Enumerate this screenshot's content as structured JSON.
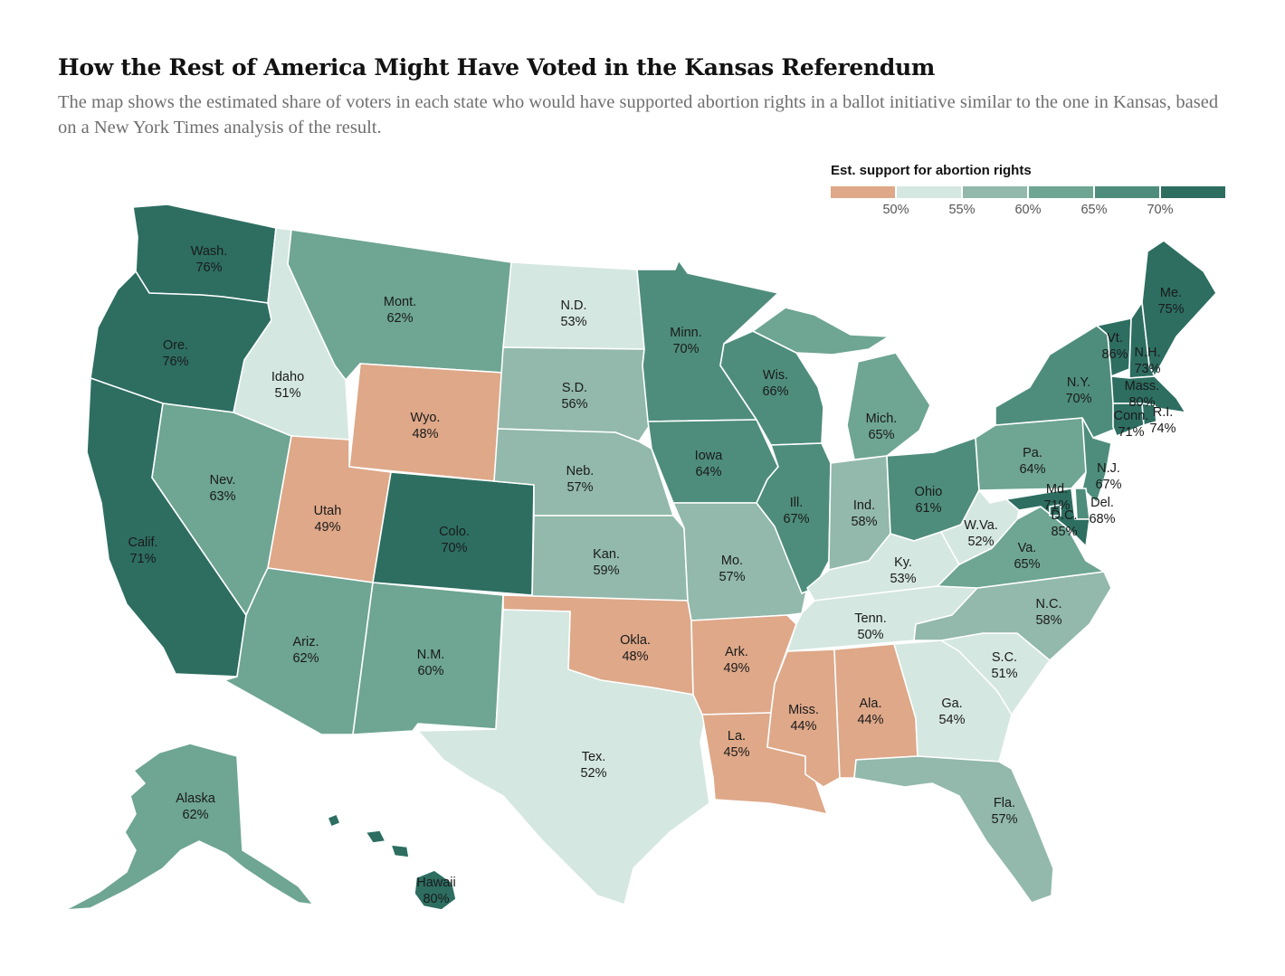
{
  "header": {
    "title": "How the Rest of America Might Have Voted in the Kansas Referendum",
    "subtitle": "The map shows the estimated share of voters in each state who would have supported abortion rights in a ballot initiative similar to the one in Kansas, based on a New York Times analysis of the result."
  },
  "legend": {
    "title": "Est. support for abortion rights",
    "ticks": [
      "50%",
      "55%",
      "60%",
      "65%",
      "70%"
    ],
    "bins": [
      {
        "range": "below 50%",
        "color": "#dea889"
      },
      {
        "range": "50–55%",
        "color": "#d4e7e0"
      },
      {
        "range": "55–60%",
        "color": "#92b9ab"
      },
      {
        "range": "60–65%",
        "color": "#6ea593"
      },
      {
        "range": "65–70%",
        "color": "#4e8d7b"
      },
      {
        "range": "70% and above",
        "color": "#2d6e61"
      }
    ]
  },
  "states": {
    "WA": {
      "name": "Wash.",
      "value": "76%"
    },
    "OR": {
      "name": "Ore.",
      "value": "76%"
    },
    "CA": {
      "name": "Calif.",
      "value": "71%"
    },
    "ID": {
      "name": "Idaho",
      "value": "51%"
    },
    "NV": {
      "name": "Nev.",
      "value": "63%"
    },
    "MT": {
      "name": "Mont.",
      "value": "62%"
    },
    "WY": {
      "name": "Wyo.",
      "value": "48%"
    },
    "UT": {
      "name": "Utah",
      "value": "49%"
    },
    "CO": {
      "name": "Colo.",
      "value": "70%"
    },
    "AZ": {
      "name": "Ariz.",
      "value": "62%"
    },
    "NM": {
      "name": "N.M.",
      "value": "60%"
    },
    "ND": {
      "name": "N.D.",
      "value": "53%"
    },
    "SD": {
      "name": "S.D.",
      "value": "56%"
    },
    "NE": {
      "name": "Neb.",
      "value": "57%"
    },
    "KS": {
      "name": "Kan.",
      "value": "59%"
    },
    "OK": {
      "name": "Okla.",
      "value": "48%"
    },
    "TX": {
      "name": "Tex.",
      "value": "52%"
    },
    "MN": {
      "name": "Minn.",
      "value": "70%"
    },
    "IA": {
      "name": "Iowa",
      "value": "64%"
    },
    "MO": {
      "name": "Mo.",
      "value": "57%"
    },
    "AR": {
      "name": "Ark.",
      "value": "49%"
    },
    "LA": {
      "name": "La.",
      "value": "45%"
    },
    "WI": {
      "name": "Wis.",
      "value": "66%"
    },
    "IL": {
      "name": "Ill.",
      "value": "67%"
    },
    "MI": {
      "name": "Mich.",
      "value": "65%"
    },
    "IN": {
      "name": "Ind.",
      "value": "58%"
    },
    "OH": {
      "name": "Ohio",
      "value": "61%"
    },
    "KY": {
      "name": "Ky.",
      "value": "53%"
    },
    "TN": {
      "name": "Tenn.",
      "value": "50%"
    },
    "MS": {
      "name": "Miss.",
      "value": "44%"
    },
    "AL": {
      "name": "Ala.",
      "value": "44%"
    },
    "GA": {
      "name": "Ga.",
      "value": "54%"
    },
    "FL": {
      "name": "Fla.",
      "value": "57%"
    },
    "SC": {
      "name": "S.C.",
      "value": "51%"
    },
    "NC": {
      "name": "N.C.",
      "value": "58%"
    },
    "VA": {
      "name": "Va.",
      "value": "65%"
    },
    "WV": {
      "name": "W.Va.",
      "value": "52%"
    },
    "PA": {
      "name": "Pa.",
      "value": "64%"
    },
    "NY": {
      "name": "N.Y.",
      "value": "70%"
    },
    "NJ": {
      "name": "N.J.",
      "value": "67%"
    },
    "MD": {
      "name": "Md.",
      "value": "71%"
    },
    "DE": {
      "name": "Del.",
      "value": "68%"
    },
    "DC": {
      "name": "D.C.",
      "value": "85%"
    },
    "VT": {
      "name": "Vt.",
      "value": "86%"
    },
    "NH": {
      "name": "N.H.",
      "value": "73%"
    },
    "ME": {
      "name": "Me.",
      "value": "75%"
    },
    "MA": {
      "name": "Mass.",
      "value": "80%"
    },
    "CT": {
      "name": "Conn.",
      "value": "71%"
    },
    "RI": {
      "name": "R.I.",
      "value": "74%"
    },
    "AK": {
      "name": "Alaska",
      "value": "62%"
    },
    "HI": {
      "name": "Hawaii",
      "value": "80%"
    }
  }
}
